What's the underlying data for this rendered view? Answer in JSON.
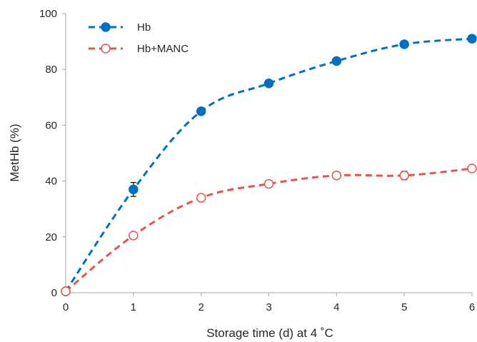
{
  "chart_data": {
    "type": "line",
    "title": "",
    "xlabel": "Storage time (d) at  4 ˚C",
    "ylabel": "MetHb (%)",
    "xlim": [
      0,
      6
    ],
    "ylim": [
      0,
      100
    ],
    "x_ticks": [
      0,
      1,
      2,
      3,
      4,
      5,
      6
    ],
    "y_ticks": [
      0,
      20,
      40,
      60,
      80,
      100
    ],
    "grid": false,
    "legend": {
      "position": "top-left"
    },
    "series": [
      {
        "name": "Hb",
        "color": "#0070c0",
        "marker": "filled-circle",
        "line_style": "dashed",
        "x": [
          0,
          1,
          2,
          3,
          4,
          5,
          6
        ],
        "y": [
          0.5,
          37,
          65,
          75,
          83,
          89,
          91
        ],
        "error": [
          0,
          2.5,
          1.2,
          1.2,
          0.5,
          0.5,
          0.5
        ]
      },
      {
        "name": "Hb+MANC",
        "color": "#e8534a",
        "marker": "open-circle",
        "line_style": "dashed",
        "x": [
          0,
          1,
          2,
          3,
          4,
          5,
          6
        ],
        "y": [
          0.5,
          20.5,
          34,
          39,
          42,
          42,
          44.5
        ],
        "error": [
          0,
          0.5,
          0.5,
          0.5,
          0.5,
          1.5,
          0.5
        ]
      }
    ]
  }
}
